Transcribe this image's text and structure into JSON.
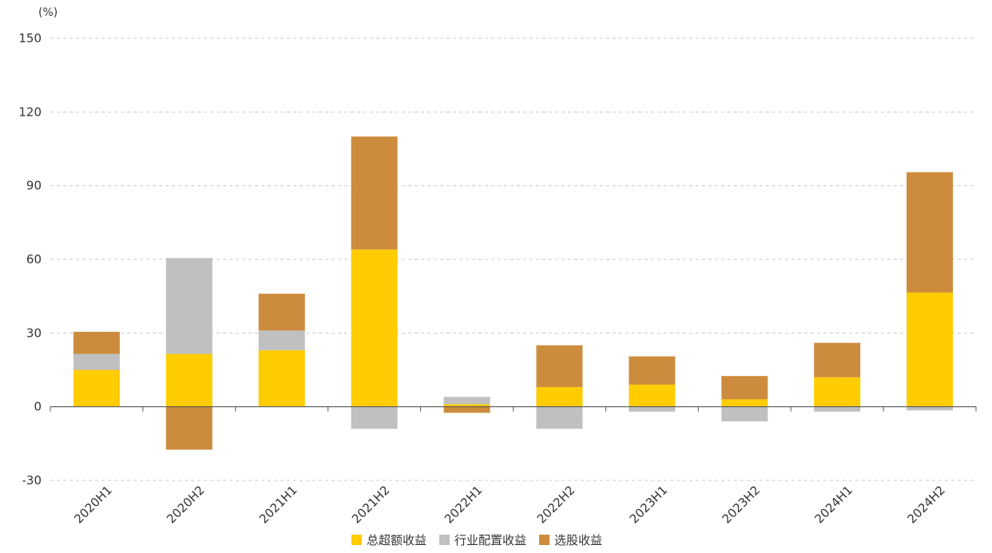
{
  "chart_data": {
    "type": "bar",
    "stacked": true,
    "unit_label": "(%)",
    "categories": [
      "2020H1",
      "2020H2",
      "2021H1",
      "2021H2",
      "2022H1",
      "2022H2",
      "2023H1",
      "2023H2",
      "2024H1",
      "2024H2"
    ],
    "series": [
      {
        "name": "总超额收益",
        "color": "#FFCC00",
        "values": [
          15,
          21.5,
          23,
          64,
          1,
          8,
          9,
          3,
          12,
          46.5
        ]
      },
      {
        "name": "行业配置收益",
        "color": "#C0C0C0",
        "values": [
          6.5,
          39,
          8,
          -9,
          3,
          -9,
          -2,
          -6,
          -2,
          -1.5
        ]
      },
      {
        "name": "选股收益",
        "color": "#CD8C3D",
        "values": [
          9,
          -17.5,
          15,
          46,
          -2.5,
          17,
          11.5,
          9.5,
          14,
          49
        ]
      }
    ],
    "ylim": [
      -30,
      150
    ],
    "yticks": [
      -30,
      0,
      30,
      60,
      90,
      120,
      150
    ],
    "grid": true,
    "legend_position": "bottom"
  }
}
